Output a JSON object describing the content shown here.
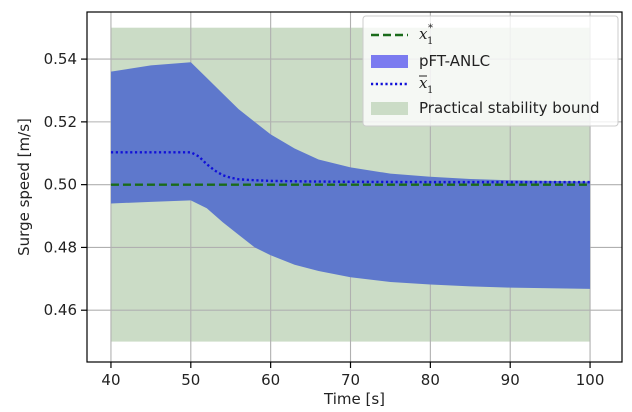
{
  "chart_data": {
    "type": "area",
    "xlabel": "Time [s]",
    "ylabel": "Surge speed [m/s]",
    "xlim": [
      37,
      104
    ],
    "ylim": [
      0.4435,
      0.555
    ],
    "x_ticks": [
      40,
      50,
      60,
      70,
      80,
      90,
      100
    ],
    "y_ticks": [
      0.46,
      0.48,
      0.5,
      0.52,
      0.54
    ],
    "grid": true,
    "legend_position": "top-right",
    "colors": {
      "bound": "#cbdcc6",
      "band": "#5e78cc",
      "reference": "#1a6b1a",
      "mean": "#1010d8",
      "grid": "#b0b0b0"
    },
    "legend": [
      {
        "kind": "dashed-line",
        "symbol": "x",
        "sub": "1",
        "sup": "*",
        "color": "#1a6b1a"
      },
      {
        "kind": "patch",
        "label": "pFT-ANLC",
        "color": "#7b7bf0"
      },
      {
        "kind": "dotted-line",
        "symbol": "x",
        "sub": "1",
        "overline": true,
        "color": "#1010d8"
      },
      {
        "kind": "patch",
        "label": "Practical stability bound",
        "color": "#cbdcc6"
      }
    ],
    "series": [
      {
        "id": "bound",
        "x": [
          40,
          100
        ],
        "y_low": [
          0.45,
          0.45
        ],
        "y_high": [
          0.55,
          0.55
        ]
      },
      {
        "id": "band",
        "name": "pFT-ANLC",
        "x": [
          40,
          45,
          50,
          52,
          54,
          56,
          58,
          60,
          63,
          66,
          70,
          75,
          80,
          85,
          90,
          95,
          100
        ],
        "y_high": [
          0.536,
          0.538,
          0.539,
          0.534,
          0.529,
          0.524,
          0.52,
          0.516,
          0.5115,
          0.508,
          0.5055,
          0.5035,
          0.5025,
          0.5018,
          0.5014,
          0.5012,
          0.501
        ],
        "y_low": [
          0.494,
          0.4945,
          0.495,
          0.4925,
          0.488,
          0.484,
          0.48,
          0.4775,
          0.4745,
          0.4725,
          0.4705,
          0.469,
          0.4682,
          0.4676,
          0.4672,
          0.467,
          0.4668
        ]
      },
      {
        "id": "reference",
        "x": [
          40,
          100
        ],
        "y": [
          0.5,
          0.5
        ]
      },
      {
        "id": "mean",
        "x": [
          40,
          50,
          51,
          52,
          53,
          54,
          55,
          56,
          58,
          60,
          65,
          70,
          80,
          90,
          100
        ],
        "y": [
          0.5103,
          0.5103,
          0.509,
          0.5065,
          0.5045,
          0.503,
          0.5022,
          0.5017,
          0.5014,
          0.5012,
          0.501,
          0.5009,
          0.5008,
          0.5008,
          0.5008
        ]
      }
    ]
  }
}
